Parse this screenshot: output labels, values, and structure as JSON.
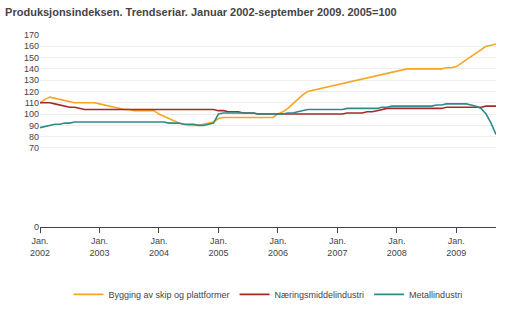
{
  "chart_data": {
    "type": "line",
    "title": "Produksjonsindeksen. Trendseriar. Januar 2002-september 2009. 2005=100",
    "categories": [
      "Jan.\n2002",
      null,
      null,
      null,
      null,
      null,
      null,
      null,
      null,
      null,
      null,
      null,
      "Jan.\n2003",
      null,
      null,
      null,
      null,
      null,
      null,
      null,
      null,
      null,
      null,
      null,
      "Jan.\n2004",
      null,
      null,
      null,
      null,
      null,
      null,
      null,
      null,
      null,
      null,
      null,
      "Jan.\n2005",
      null,
      null,
      null,
      null,
      null,
      null,
      null,
      null,
      null,
      null,
      null,
      "Jan.\n2006",
      null,
      null,
      null,
      null,
      null,
      null,
      null,
      null,
      null,
      null,
      null,
      "Jan.\n2007",
      null,
      null,
      null,
      null,
      null,
      null,
      null,
      null,
      null,
      null,
      null,
      "Jan.\n2008",
      null,
      null,
      null,
      null,
      null,
      null,
      null,
      null,
      null,
      null,
      null,
      "Jan.\n2009",
      null,
      null,
      null,
      null,
      null,
      null,
      null,
      null
    ],
    "series": [
      {
        "name": "Bygging av skip og plattformer",
        "color": "#f5a623",
        "values": [
          110,
          113,
          115,
          114,
          113,
          112,
          111,
          110,
          110,
          110,
          110,
          110,
          109,
          108,
          107,
          106,
          105,
          104,
          104,
          103,
          103,
          103,
          103,
          103,
          100,
          98,
          96,
          94,
          92,
          91,
          90,
          90,
          90,
          91,
          92,
          93,
          96,
          97,
          97,
          97,
          97,
          97,
          97,
          97,
          97,
          97,
          97,
          97,
          100,
          102,
          105,
          109,
          113,
          117,
          120,
          121,
          122,
          123,
          124,
          125,
          126,
          127,
          128,
          129,
          130,
          131,
          132,
          133,
          134,
          135,
          136,
          137,
          138,
          139,
          140,
          140,
          140,
          140,
          140,
          140,
          140,
          140,
          141,
          141,
          142,
          145,
          148,
          151,
          154,
          157,
          160,
          161,
          162
        ]
      },
      {
        "name": "Næringsmiddelindustri",
        "color": "#a52a2a",
        "values": [
          110,
          110,
          110,
          109,
          108,
          107,
          106,
          106,
          105,
          104,
          104,
          104,
          104,
          104,
          104,
          104,
          104,
          104,
          104,
          104,
          104,
          104,
          104,
          104,
          104,
          104,
          104,
          104,
          104,
          104,
          104,
          104,
          104,
          104,
          104,
          104,
          103,
          103,
          102,
          102,
          102,
          101,
          101,
          101,
          100,
          100,
          100,
          100,
          100,
          100,
          100,
          100,
          100,
          100,
          100,
          100,
          100,
          100,
          100,
          100,
          100,
          100,
          101,
          101,
          101,
          101,
          102,
          102,
          103,
          104,
          105,
          105,
          105,
          105,
          105,
          105,
          105,
          105,
          105,
          105,
          105,
          105,
          106,
          106,
          106,
          106,
          106,
          106,
          106,
          106,
          107,
          107,
          107
        ]
      },
      {
        "name": "Metallindustri",
        "color": "#2e8b8b",
        "values": [
          88,
          89,
          90,
          91,
          91,
          92,
          92,
          93,
          93,
          93,
          93,
          93,
          93,
          93,
          93,
          93,
          93,
          93,
          93,
          93,
          93,
          93,
          93,
          93,
          93,
          93,
          92,
          92,
          92,
          91,
          91,
          91,
          90,
          90,
          91,
          92,
          100,
          101,
          101,
          101,
          101,
          101,
          101,
          101,
          100,
          100,
          100,
          100,
          100,
          100,
          101,
          101,
          102,
          103,
          104,
          104,
          104,
          104,
          104,
          104,
          104,
          104,
          105,
          105,
          105,
          105,
          105,
          105,
          105,
          106,
          106,
          107,
          107,
          107,
          107,
          107,
          107,
          107,
          107,
          107,
          108,
          108,
          109,
          109,
          109,
          109,
          109,
          108,
          107,
          105,
          100,
          92,
          82
        ]
      }
    ],
    "ylim": [
      0,
      170
    ],
    "yticks": [
      0,
      70,
      80,
      90,
      100,
      110,
      120,
      130,
      140,
      150,
      160,
      170
    ],
    "grid": true,
    "legend": "bottom"
  }
}
